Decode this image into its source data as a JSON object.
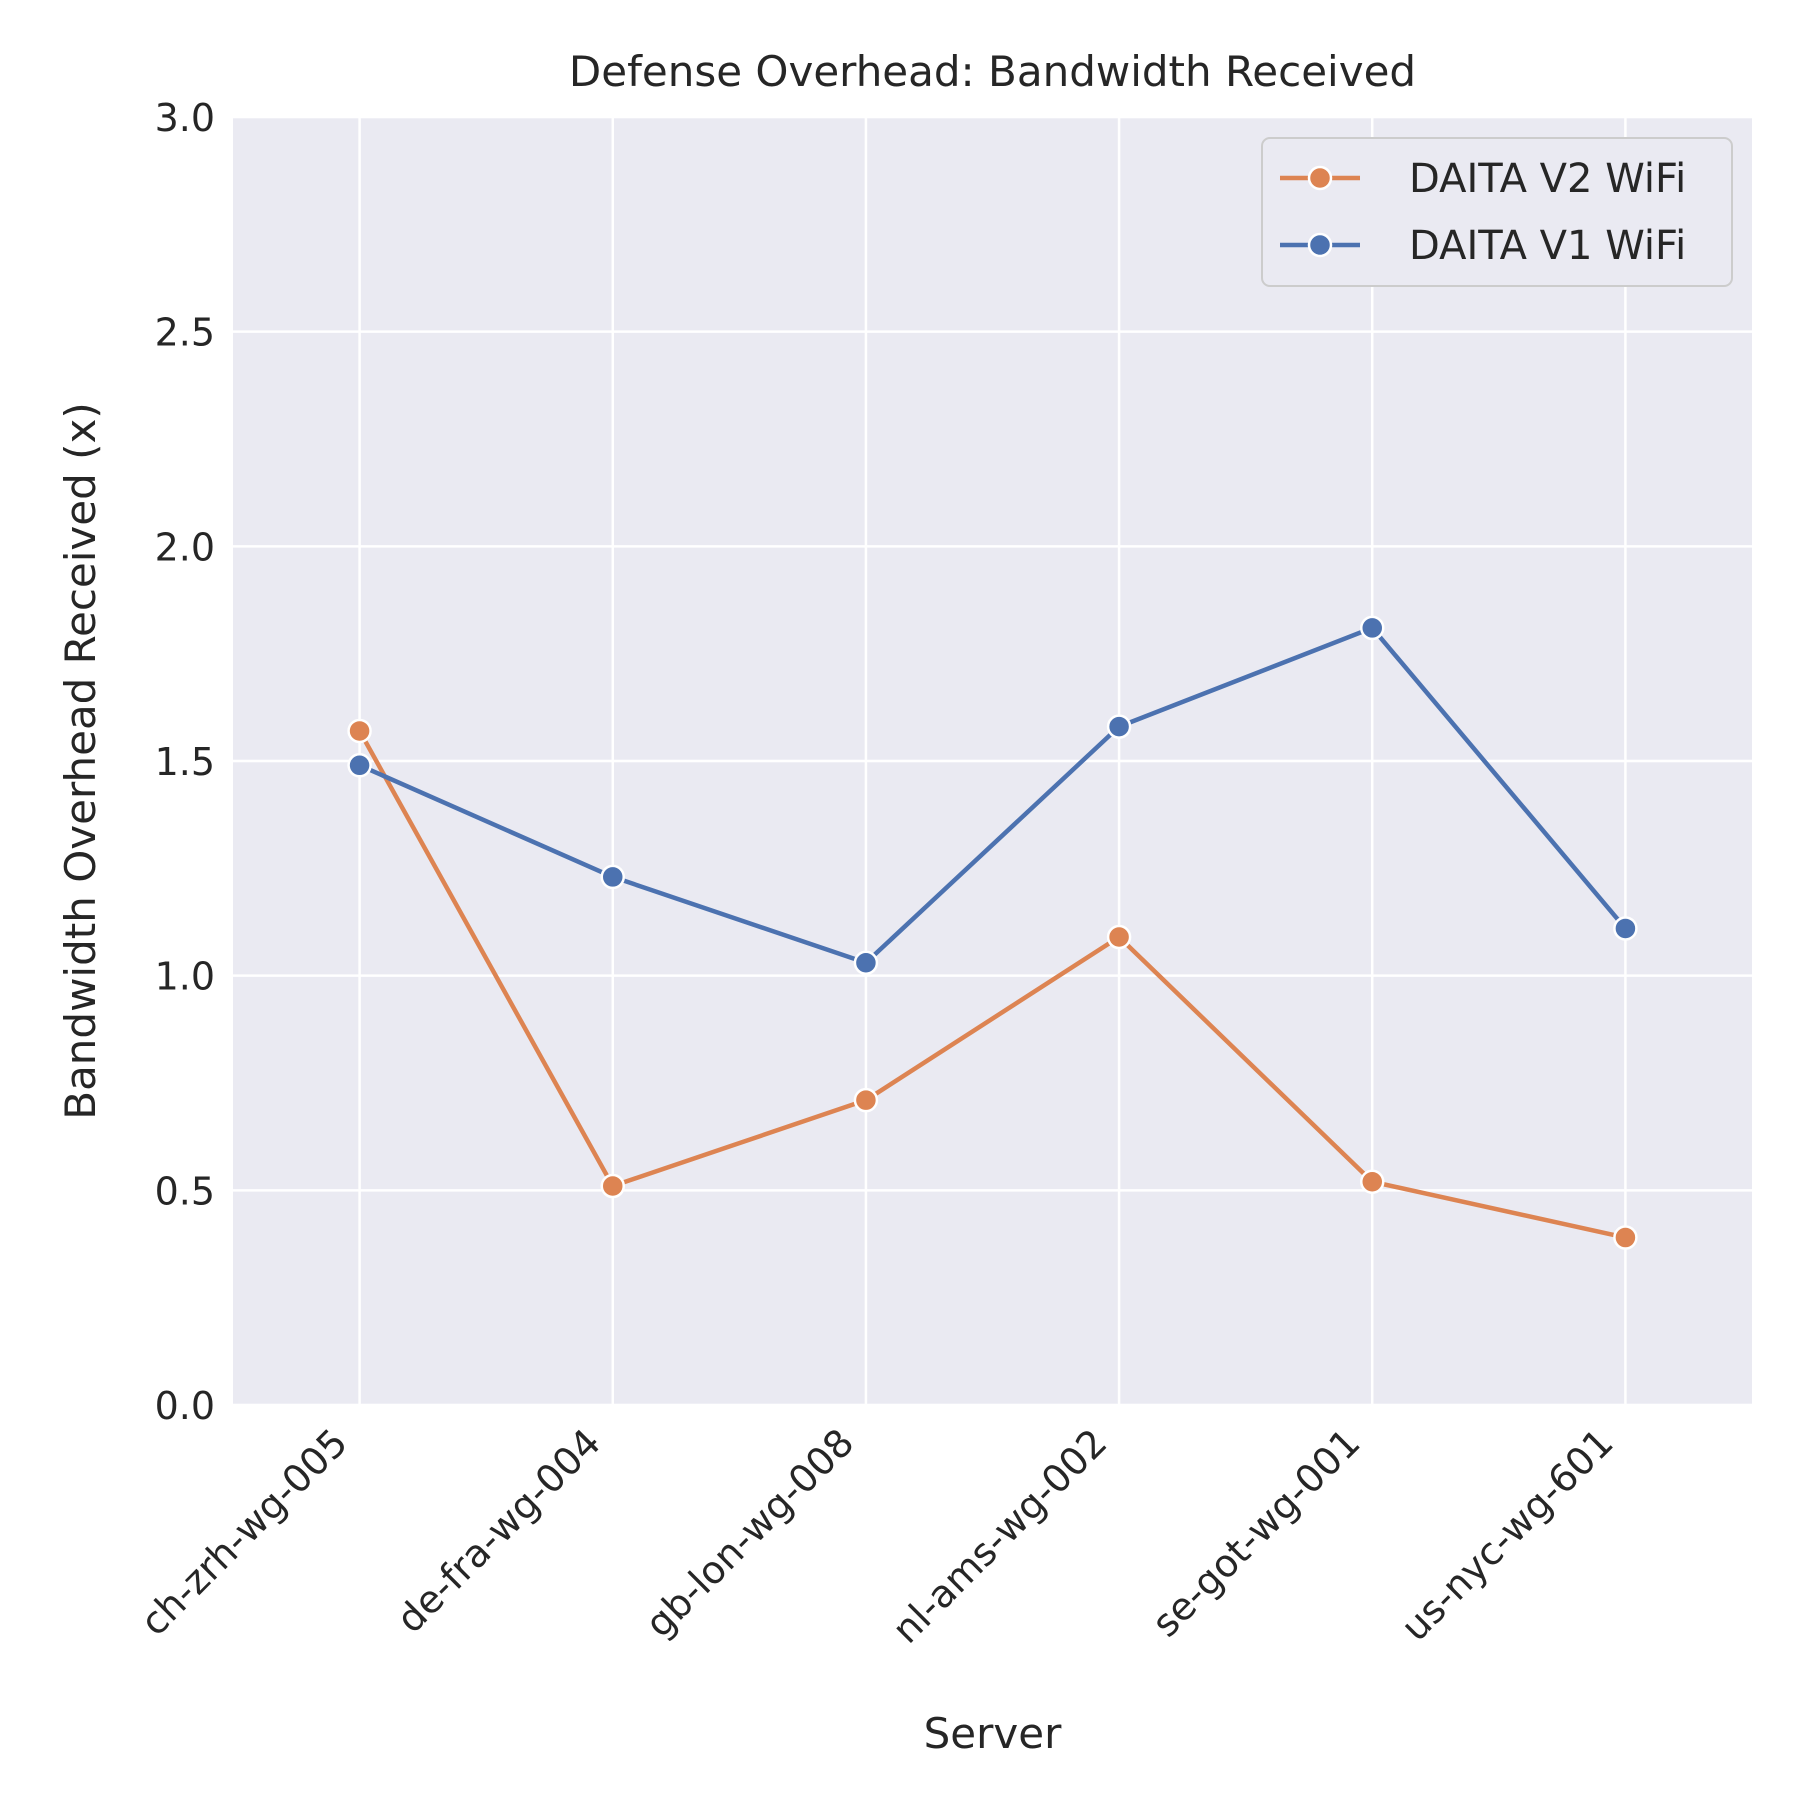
{
  "chart_data": {
    "type": "line",
    "title": "Defense Overhead: Bandwidth Received",
    "xlabel": "Server",
    "ylabel": "Bandwidth Overhead Received (x)",
    "categories": [
      "ch-zrh-wg-005",
      "de-fra-wg-004",
      "gb-lon-wg-008",
      "nl-ams-wg-002",
      "se-got-wg-001",
      "us-nyc-wg-601"
    ],
    "ylim": [
      0,
      3.0
    ],
    "yticks": [
      "0.0",
      "0.5",
      "1.0",
      "1.5",
      "2.0",
      "2.5",
      "3.0"
    ],
    "grid": true,
    "legend_position": "top-right",
    "series": [
      {
        "name": "DAITA V2 WiFi",
        "color": "#dd8452",
        "marker": "circle",
        "values": [
          1.57,
          0.51,
          0.71,
          1.09,
          0.52,
          0.39
        ]
      },
      {
        "name": "DAITA V1 WiFi",
        "color": "#4c72b0",
        "marker": "circle",
        "values": [
          1.49,
          1.23,
          1.03,
          1.58,
          1.81,
          1.11
        ]
      }
    ],
    "background_color": "#eaeaf2",
    "grid_color": "#ffffff"
  }
}
